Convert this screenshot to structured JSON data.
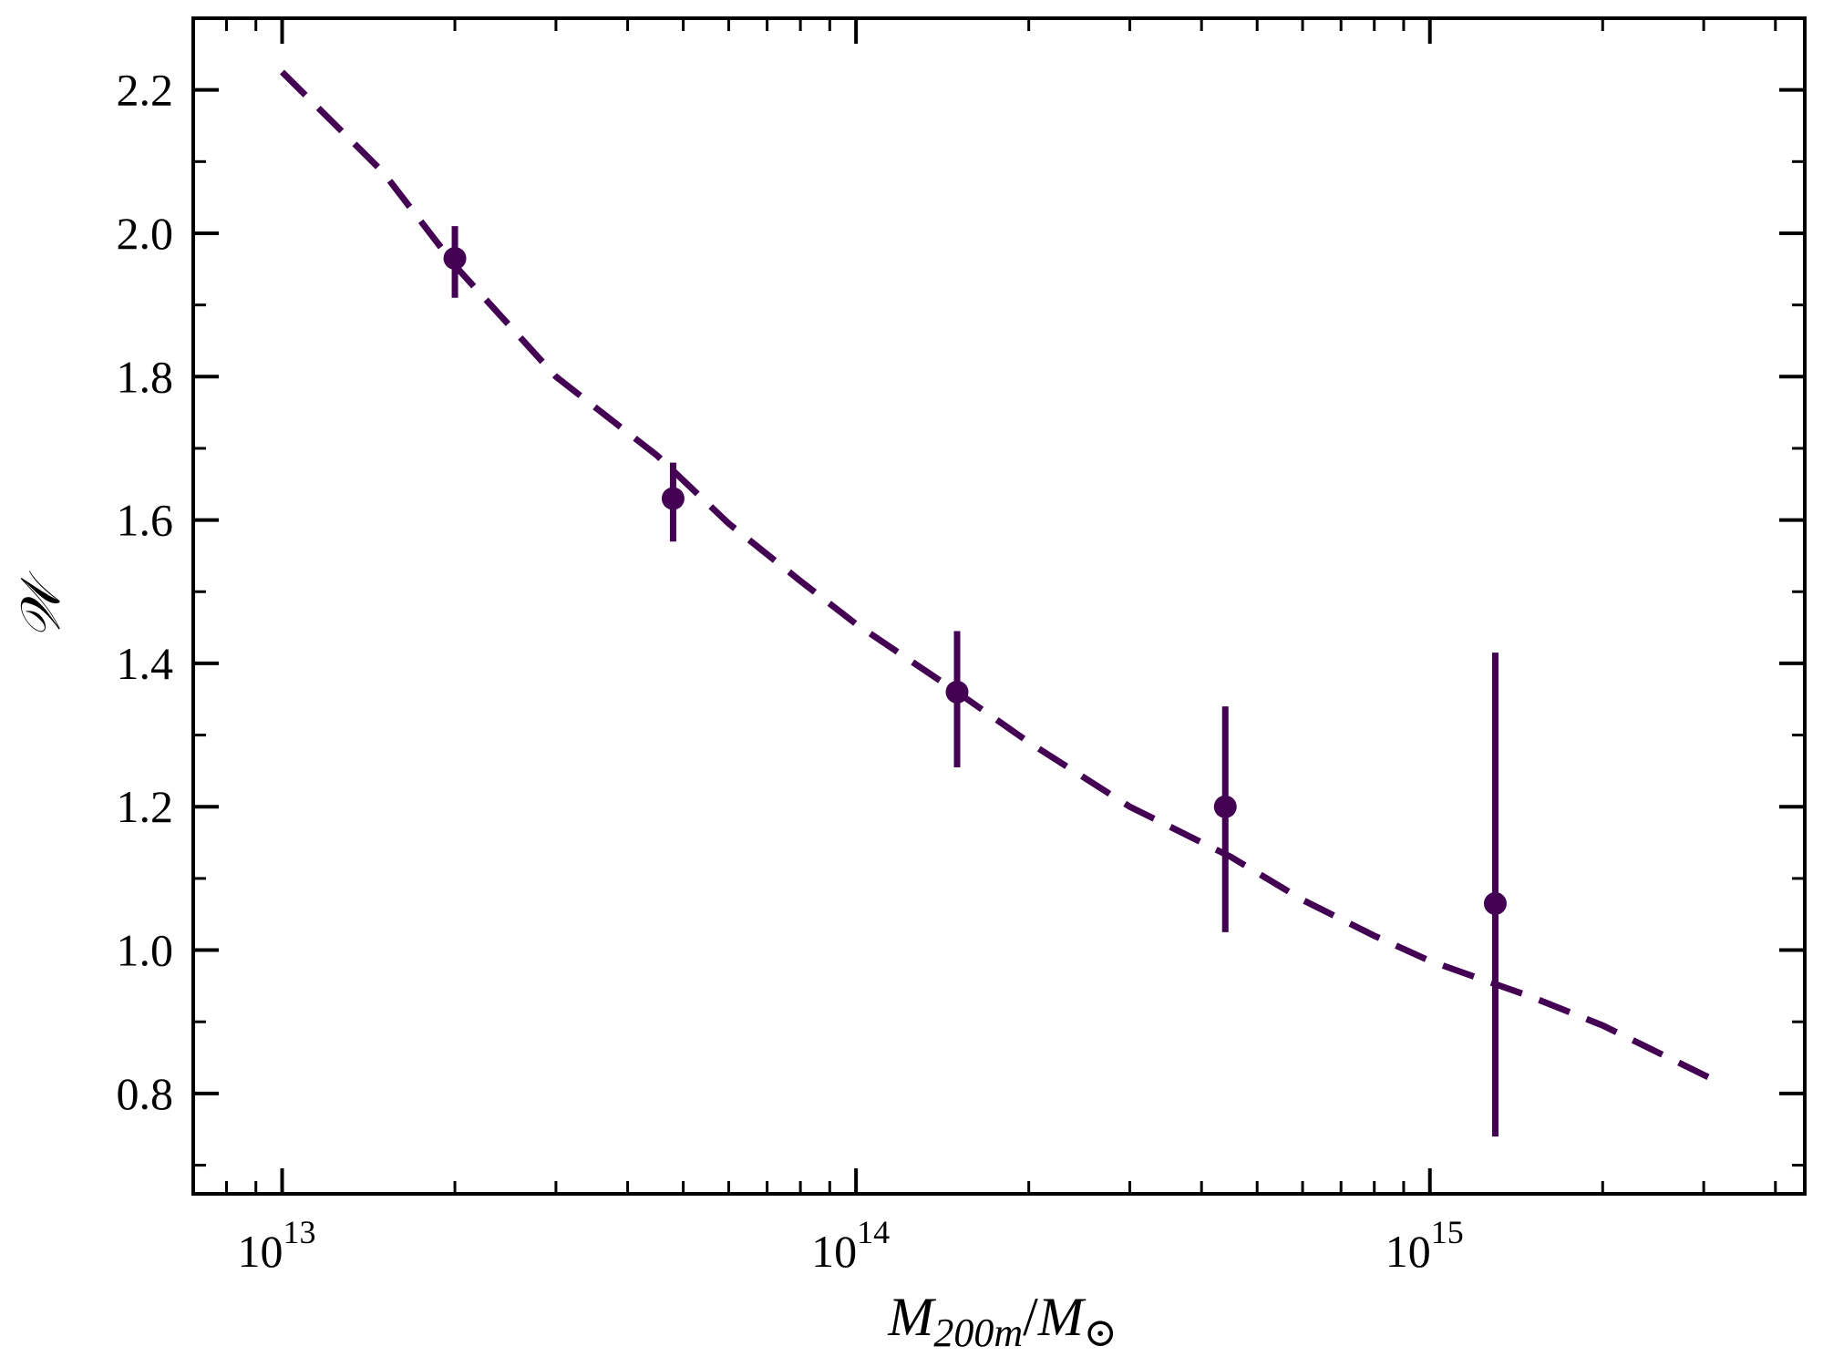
{
  "chart_data": {
    "type": "scatter",
    "xlabel": "M_{200m}/M_⊙",
    "xlabel_parts": {
      "main": "M",
      "sub": "200m",
      "slash": "/",
      "main2": "M",
      "sub2": "⊙"
    },
    "ylabel": "𝒲",
    "x_scale": "log",
    "xlim": [
      7000000000000.0,
      4500000000000000.0
    ],
    "ylim": [
      0.66,
      2.3
    ],
    "grid": false,
    "legend": "none",
    "x_major_ticks": [
      {
        "value": 10000000000000.0,
        "base": "10",
        "exp": "13"
      },
      {
        "value": 100000000000000.0,
        "base": "10",
        "exp": "14"
      },
      {
        "value": 1000000000000000.0,
        "base": "10",
        "exp": "15"
      }
    ],
    "y_ticks": [
      {
        "value": 0.8,
        "label": "0.8"
      },
      {
        "value": 1.0,
        "label": "1.0"
      },
      {
        "value": 1.2,
        "label": "1.2"
      },
      {
        "value": 1.4,
        "label": "1.4"
      },
      {
        "value": 1.6,
        "label": "1.6"
      },
      {
        "value": 1.8,
        "label": "1.8"
      },
      {
        "value": 2.0,
        "label": "2.0"
      },
      {
        "value": 2.2,
        "label": "2.2"
      }
    ],
    "series": [
      {
        "kind": "errorbar",
        "color": "#440154",
        "points": [
          {
            "x": 20000000000000.0,
            "y": 1.965,
            "ylow": 1.91,
            "yhigh": 2.01
          },
          {
            "x": 48000000000000.0,
            "y": 1.63,
            "ylow": 1.57,
            "yhigh": 1.68
          },
          {
            "x": 150000000000000.0,
            "y": 1.36,
            "ylow": 1.255,
            "yhigh": 1.445
          },
          {
            "x": 440000000000000.0,
            "y": 1.2,
            "ylow": 1.025,
            "yhigh": 1.34
          },
          {
            "x": 1300000000000000.0,
            "y": 1.065,
            "ylow": 0.74,
            "yhigh": 1.415
          }
        ]
      },
      {
        "kind": "line",
        "style": "dashed",
        "color": "#440154",
        "x": [
          10000000000000.0,
          15000000000000.0,
          20000000000000.0,
          30000000000000.0,
          45000000000000.0,
          60000000000000.0,
          80000000000000.0,
          100000000000000.0,
          150000000000000.0,
          200000000000000.0,
          300000000000000.0,
          450000000000000.0,
          600000000000000.0,
          800000000000000.0,
          1000000000000000.0,
          1500000000000000.0,
          2000000000000000.0,
          3200000000000000.0
        ],
        "y": [
          2.225,
          2.085,
          1.955,
          1.8,
          1.69,
          1.595,
          1.515,
          1.455,
          1.36,
          1.29,
          1.2,
          1.13,
          1.07,
          1.02,
          0.985,
          0.935,
          0.895,
          0.815
        ]
      }
    ]
  }
}
